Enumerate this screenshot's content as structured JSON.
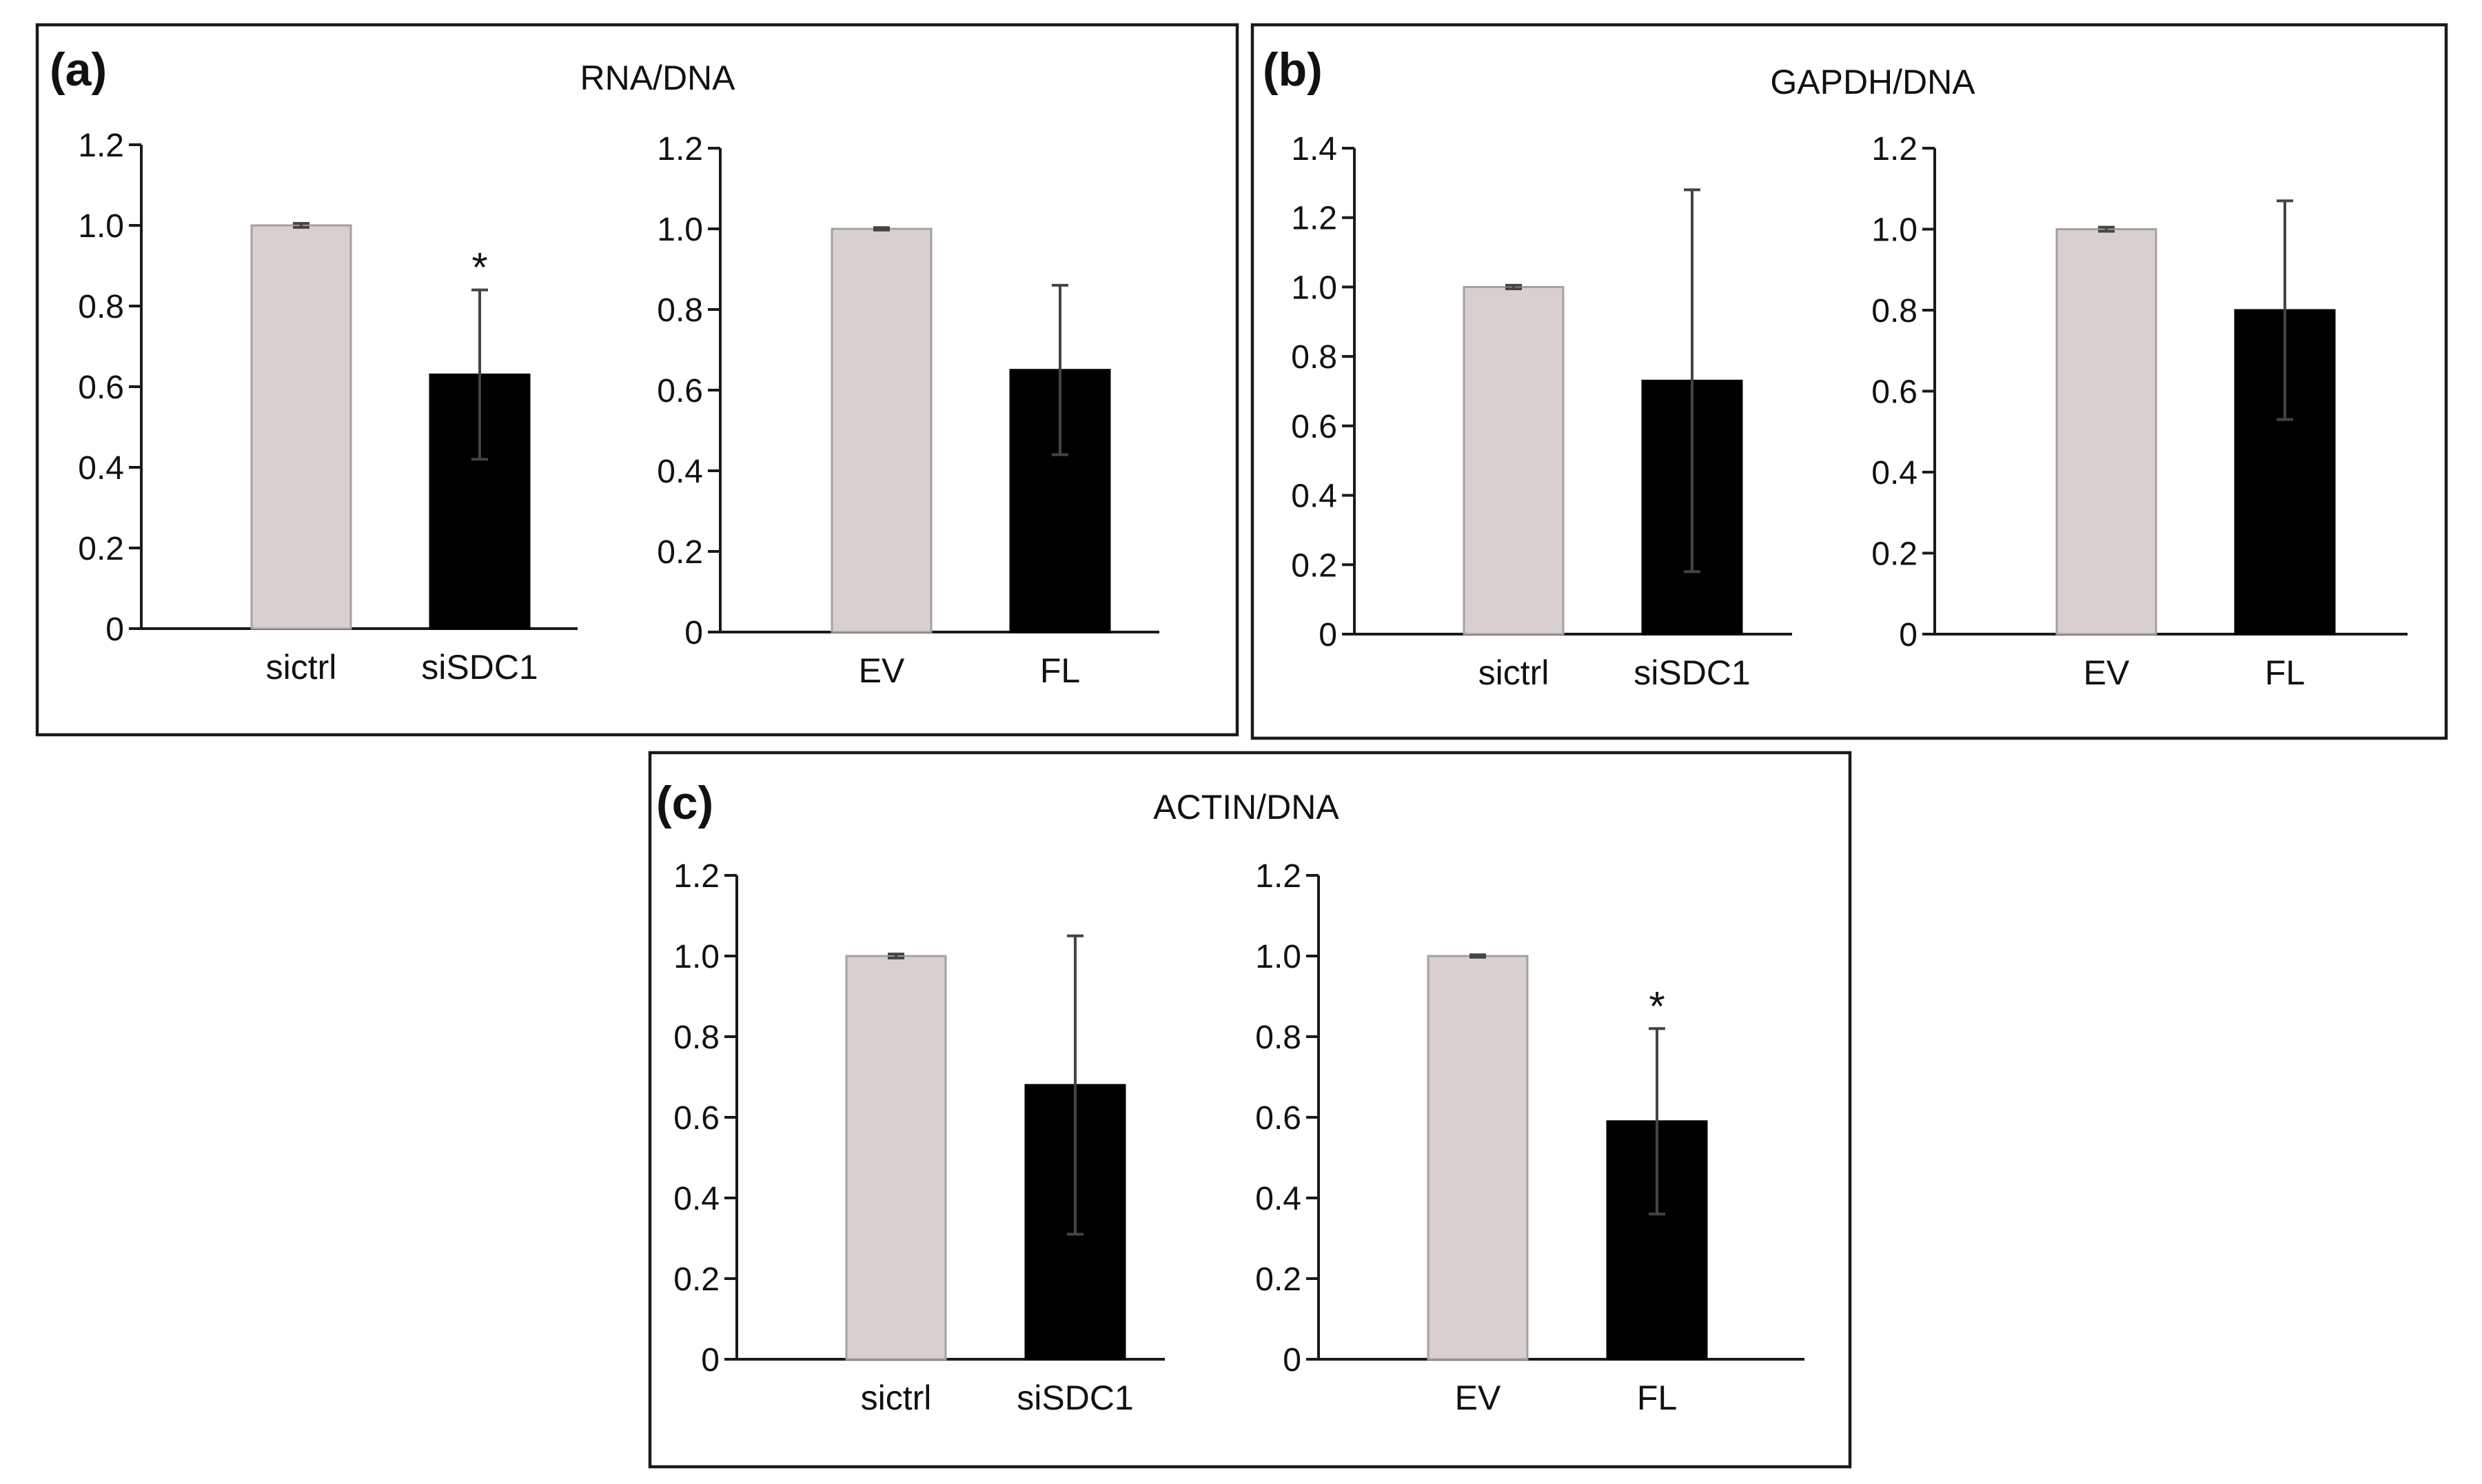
{
  "colors": {
    "control_bar": "#d8d0cf",
    "control_bar_edge": "#a8a0a0",
    "treatment_bar": "#000000"
  },
  "panels": [
    {
      "letter": "(a)",
      "title": "RNA/DNA",
      "charts": [
        {
          "ylim": [
            0,
            1.2
          ],
          "ticks": [
            "0",
            "0.2",
            "0.4",
            "0.6",
            "0.8",
            "1.0",
            "1.2"
          ]
        },
        {
          "ylim": [
            0,
            1.2
          ],
          "ticks": [
            "0",
            "0.2",
            "0.4",
            "0.6",
            "0.8",
            "1.0",
            "1.2"
          ]
        }
      ]
    },
    {
      "letter": "(b)",
      "title": "GAPDH/DNA",
      "charts": [
        {
          "ylim": [
            0,
            1.4
          ],
          "ticks": [
            "0",
            "0.2",
            "0.4",
            "0.6",
            "0.8",
            "1.0",
            "1.2",
            "1.4"
          ]
        },
        {
          "ylim": [
            0,
            1.2
          ],
          "ticks": [
            "0",
            "0.2",
            "0.4",
            "0.6",
            "0.8",
            "1.0",
            "1.2"
          ]
        }
      ]
    },
    {
      "letter": "(c)",
      "title": "ACTIN/DNA",
      "charts": [
        {
          "ylim": [
            0,
            1.2
          ],
          "ticks": [
            "0",
            "0.2",
            "0.4",
            "0.6",
            "0.8",
            "1.0",
            "1.2"
          ]
        },
        {
          "ylim": [
            0,
            1.2
          ],
          "ticks": [
            "0",
            "0.2",
            "0.4",
            "0.6",
            "0.8",
            "1.0",
            "1.2"
          ]
        }
      ]
    }
  ],
  "chart_data": [
    {
      "type": "bar",
      "panel": "(a)",
      "title": "RNA/DNA",
      "categories": [
        "sictrl",
        "siSDC1"
      ],
      "values": [
        1.0,
        0.63
      ],
      "errors": [
        0.005,
        0.21
      ],
      "significance": [
        "",
        "*"
      ],
      "ylim": [
        0,
        1.2
      ]
    },
    {
      "type": "bar",
      "panel": "(a)",
      "title": "RNA/DNA",
      "categories": [
        "EV",
        "FL"
      ],
      "values": [
        1.0,
        0.65
      ],
      "errors": [
        0.003,
        0.21
      ],
      "significance": [
        "",
        ""
      ],
      "ylim": [
        0,
        1.2
      ]
    },
    {
      "type": "bar",
      "panel": "(b)",
      "title": "GAPDH/DNA",
      "categories": [
        "sictrl",
        "siSDC1"
      ],
      "values": [
        1.0,
        0.73
      ],
      "errors": [
        0.005,
        0.55
      ],
      "significance": [
        "",
        ""
      ],
      "ylim": [
        0,
        1.4
      ]
    },
    {
      "type": "bar",
      "panel": "(b)",
      "title": "GAPDH/DNA",
      "categories": [
        "EV",
        "FL"
      ],
      "values": [
        1.0,
        0.8
      ],
      "errors": [
        0.005,
        0.27
      ],
      "significance": [
        "",
        ""
      ],
      "ylim": [
        0,
        1.2
      ]
    },
    {
      "type": "bar",
      "panel": "(c)",
      "title": "ACTIN/DNA",
      "categories": [
        "sictrl",
        "siSDC1"
      ],
      "values": [
        1.0,
        0.68
      ],
      "errors": [
        0.005,
        0.37
      ],
      "significance": [
        "",
        ""
      ],
      "ylim": [
        0,
        1.2
      ]
    },
    {
      "type": "bar",
      "panel": "(c)",
      "title": "ACTIN/DNA",
      "categories": [
        "EV",
        "FL"
      ],
      "values": [
        1.0,
        0.59
      ],
      "errors": [
        0.003,
        0.23
      ],
      "significance": [
        "",
        "*"
      ],
      "ylim": [
        0,
        1.2
      ]
    }
  ]
}
